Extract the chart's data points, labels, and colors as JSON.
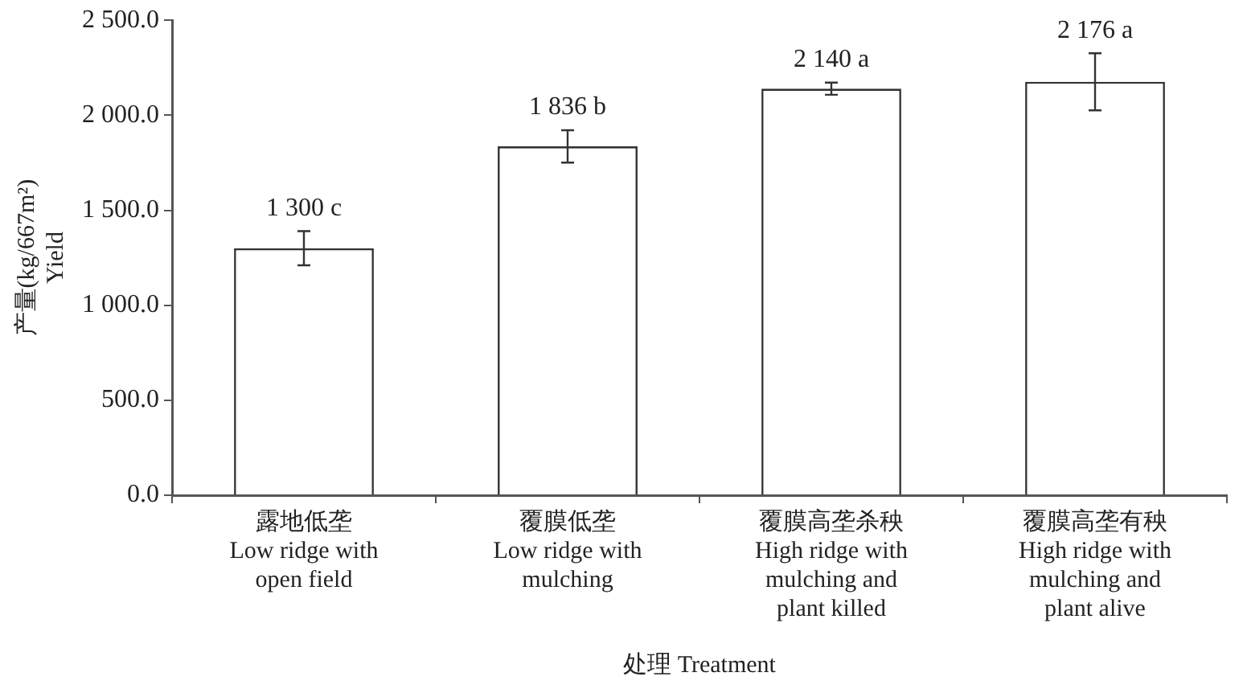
{
  "chart_data": {
    "type": "bar",
    "categories": [
      "露地低垄\nLow ridge with\nopen field",
      "覆膜低垄\nLow ridge with\nmulching",
      "覆膜高垄杀秧\nHigh ridge with\nmulching and\nplant killed",
      "覆膜高垄有秧\nHigh ridge with\nmulching and\nplant alive"
    ],
    "values": [
      1300,
      1836,
      2140,
      2176
    ],
    "errors": [
      90,
      85,
      32,
      150
    ],
    "value_labels": [
      "1 300 c",
      "1 836 b",
      "2 140 a",
      "2 176 a"
    ],
    "color": "#ffffff",
    "xlabel": "处理 Treatment",
    "ylabel": "产量(kg/667m²)\nYield",
    "ylim": [
      0,
      2500
    ],
    "yticks": [
      {
        "value": 0,
        "label": "0.0"
      },
      {
        "value": 500,
        "label": "500.0"
      },
      {
        "value": 1000,
        "label": "1 000.0"
      },
      {
        "value": 1500,
        "label": "1 500.0"
      },
      {
        "value": 2000,
        "label": "2 000.0"
      },
      {
        "value": 2500,
        "label": "2 500.0"
      }
    ],
    "grid": false,
    "legend": false
  }
}
